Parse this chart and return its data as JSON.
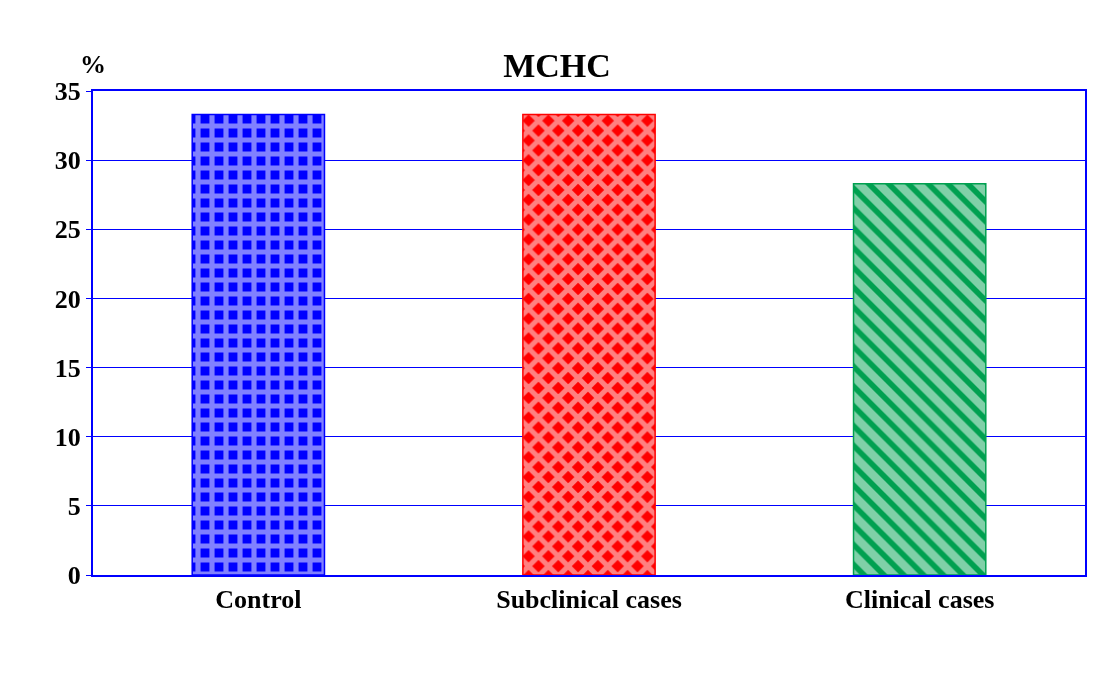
{
  "chart_data": {
    "type": "bar",
    "title": "MCHC",
    "ylabel": "%",
    "categories": [
      "Control",
      "Subclinical cases",
      "Clinical cases"
    ],
    "values": [
      33.3,
      33.3,
      28.3
    ],
    "colors": [
      "#0000ff",
      "#ff0000",
      "#00a050"
    ],
    "ylim": [
      0,
      35
    ],
    "yticks": [
      0,
      5,
      10,
      15,
      20,
      25,
      30,
      35
    ],
    "grid": "y",
    "legend": false
  }
}
